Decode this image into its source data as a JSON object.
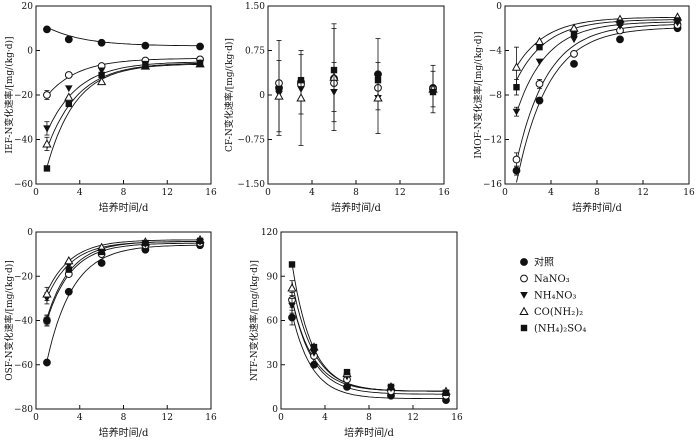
{
  "legend": {
    "items": [
      {
        "key": "ck",
        "label": "对照",
        "marker": "filled-circle"
      },
      {
        "key": "nano3",
        "label": "NaNO₃",
        "marker": "open-circle"
      },
      {
        "key": "nh4no3",
        "label": "NH₄NO₃",
        "marker": "filled-triangle-down"
      },
      {
        "key": "urea",
        "label": "CO(NH₂)₂",
        "marker": "open-triangle-up"
      },
      {
        "key": "nh4so4",
        "label": "(NH₄)₂SO₄",
        "marker": "filled-square"
      }
    ]
  },
  "chart_data": [
    {
      "id": "ief",
      "type": "scatter",
      "ylabel": "IEF-N变化速率/[mg/(kg·d)]",
      "xlabel": "培养时间/d",
      "xlim": [
        0,
        16
      ],
      "ylim": [
        -60,
        20
      ],
      "xticks": [
        0,
        4,
        8,
        12,
        16
      ],
      "xtick_labels": [
        "0",
        "4",
        "8",
        "12",
        "16"
      ],
      "yticks": [
        -60,
        -40,
        -20,
        0,
        20
      ],
      "ytick_labels": [
        "−60",
        "−40",
        "−20",
        "0",
        "20"
      ],
      "x": [
        1,
        3,
        6,
        10,
        15
      ],
      "series": [
        {
          "key": "ck",
          "values": [
            9.5,
            5,
            3.5,
            2.2,
            1.8
          ],
          "err": [
            0,
            0,
            0,
            0,
            0
          ],
          "fit": {
            "a": 2.0,
            "b": 11.5,
            "k": 0.3
          }
        },
        {
          "key": "nano3",
          "values": [
            -20,
            -11,
            -7,
            -4.5,
            -4
          ],
          "err": [
            2,
            0,
            0,
            0,
            0
          ],
          "fit": {
            "a": -3.5,
            "b": -24,
            "k": 0.35
          }
        },
        {
          "key": "nh4no3",
          "values": [
            -35,
            -17,
            -9,
            -6,
            -5.5
          ],
          "err": [
            3,
            0,
            0,
            0,
            0
          ],
          "fit": {
            "a": -5,
            "b": -45,
            "k": 0.35
          }
        },
        {
          "key": "urea",
          "values": [
            -42,
            -21,
            -14,
            -7,
            -6
          ],
          "err": [
            3,
            0,
            0,
            0,
            0
          ],
          "fit": {
            "a": -5.5,
            "b": -55,
            "k": 0.35
          }
        },
        {
          "key": "nh4so4",
          "values": [
            -53,
            -24,
            -11,
            -7,
            -6
          ],
          "err": [
            0,
            0,
            0,
            0,
            0
          ],
          "fit": {
            "a": -6,
            "b": -68,
            "k": 0.38
          }
        }
      ]
    },
    {
      "id": "cf",
      "type": "scatter",
      "ylabel": "CF-N变化速率/[mg/(kg·d)]",
      "xlabel": "培养时间/d",
      "xlim": [
        0,
        16
      ],
      "ylim": [
        -1.5,
        1.5
      ],
      "xticks": [
        0,
        4,
        8,
        12,
        16
      ],
      "xtick_labels": [
        "0",
        "4",
        "8",
        "12",
        "16"
      ],
      "yticks": [
        -1.5,
        -0.75,
        0,
        0.75,
        1.5
      ],
      "ytick_labels": [
        "−1.50",
        "−0.75",
        "0",
        "0.75",
        "1.50"
      ],
      "x": [
        1,
        3,
        6,
        10,
        15
      ],
      "series": [
        {
          "key": "ck",
          "values": [
            0.12,
            0.22,
            0.28,
            0.35,
            0.12
          ],
          "err": [
            0.8,
            0,
            0,
            0.6,
            0
          ]
        },
        {
          "key": "nano3",
          "values": [
            0.2,
            0.18,
            0.2,
            0.12,
            0.1
          ],
          "err": [
            0,
            0.5,
            0,
            0,
            0.3
          ]
        },
        {
          "key": "nh4no3",
          "values": [
            0.02,
            0.1,
            0.05,
            -0.05,
            0.05
          ],
          "err": [
            0,
            0,
            0.5,
            0.6,
            0
          ]
        },
        {
          "key": "urea",
          "values": [
            -0.02,
            -0.05,
            0.3,
            -0.05,
            0.1
          ],
          "err": [
            0.6,
            0.8,
            0.9,
            0,
            0.4
          ]
        },
        {
          "key": "nh4so4",
          "values": [
            0.1,
            0.25,
            0.42,
            0.25,
            0.05
          ],
          "err": [
            0,
            0,
            0.7,
            0,
            0
          ]
        }
      ]
    },
    {
      "id": "imof",
      "type": "scatter",
      "ylabel": "IMOF-N变化速率/[mg/(kg·d)]",
      "xlabel": "培养时间/d",
      "xlim": [
        0,
        16
      ],
      "ylim": [
        -16,
        0
      ],
      "xticks": [
        0,
        4,
        8,
        12,
        16
      ],
      "xtick_labels": [
        "0",
        "4",
        "8",
        "12",
        "16"
      ],
      "yticks": [
        -16,
        -12,
        -8,
        -4,
        0
      ],
      "ytick_labels": [
        "−16",
        "−12",
        "−8",
        "−4",
        "0"
      ],
      "x": [
        1,
        3,
        6,
        10,
        15
      ],
      "series": [
        {
          "key": "ck",
          "values": [
            -14.8,
            -8.5,
            -5.2,
            -3,
            -2
          ],
          "err": [
            0.4,
            0,
            0,
            0,
            0
          ],
          "fit": {
            "a": -1.9,
            "b": -20,
            "k": 0.36
          }
        },
        {
          "key": "nano3",
          "values": [
            -13.8,
            -7,
            -4.3,
            -2.2,
            -1.7
          ],
          "err": [
            0.6,
            0.4,
            0,
            0,
            0
          ],
          "fit": {
            "a": -1.6,
            "b": -18,
            "k": 0.37
          }
        },
        {
          "key": "nh4no3",
          "values": [
            -9.5,
            -5,
            -3,
            -1.8,
            -1.5
          ],
          "err": [
            0.4,
            0,
            0,
            0,
            0
          ],
          "fit": {
            "a": -1.4,
            "b": -12,
            "k": 0.38
          }
        },
        {
          "key": "urea",
          "values": [
            -5.5,
            -3.2,
            -2,
            -1.2,
            -1
          ],
          "err": [
            1.8,
            0,
            0,
            0,
            0
          ],
          "fit": {
            "a": -1.0,
            "b": -6.5,
            "k": 0.38
          }
        },
        {
          "key": "nh4so4",
          "values": [
            -7.3,
            -3.7,
            -2.5,
            -1.5,
            -1.3
          ],
          "err": [
            0.7,
            0,
            0,
            0,
            0
          ],
          "fit": {
            "a": -1.2,
            "b": -8,
            "k": 0.38
          }
        }
      ]
    },
    {
      "id": "osf",
      "type": "scatter",
      "ylabel": "OSF-N变化速率/[mg/(kg·d)]",
      "xlabel": "培养时间/d",
      "xlim": [
        0,
        16
      ],
      "ylim": [
        -80,
        0
      ],
      "xticks": [
        0,
        4,
        8,
        12,
        16
      ],
      "xtick_labels": [
        "0",
        "4",
        "8",
        "12",
        "16"
      ],
      "yticks": [
        -80,
        -60,
        -40,
        -20,
        0
      ],
      "ytick_labels": [
        "−80",
        "−60",
        "−40",
        "−20",
        "0"
      ],
      "x": [
        1,
        3,
        6,
        10,
        15
      ],
      "series": [
        {
          "key": "ck",
          "values": [
            -59,
            -27,
            -14,
            -8,
            -6
          ],
          "err": [
            0,
            0,
            0,
            0,
            0
          ],
          "fit": {
            "a": -5.8,
            "b": -80,
            "k": 0.42
          }
        },
        {
          "key": "nano3",
          "values": [
            -40,
            -19,
            -10,
            -6,
            -5
          ],
          "err": [
            2.5,
            0,
            0,
            0,
            0
          ],
          "fit": {
            "a": -5,
            "b": -55,
            "k": 0.45
          }
        },
        {
          "key": "nh4no3",
          "values": [
            -30,
            -15,
            -8.5,
            -5.5,
            -4.5
          ],
          "err": [
            2.5,
            0,
            0,
            0,
            0
          ],
          "fit": {
            "a": -4.3,
            "b": -40,
            "k": 0.45
          }
        },
        {
          "key": "urea",
          "values": [
            -28,
            -13,
            -7,
            -4.5,
            -3.5
          ],
          "err": [
            3,
            0,
            0,
            0,
            0
          ],
          "fit": {
            "a": -3.5,
            "b": -37,
            "k": 0.45
          }
        },
        {
          "key": "nh4so4",
          "values": [
            -40,
            -17,
            -9,
            -5,
            -4
          ],
          "err": [
            2,
            0,
            0,
            0,
            0
          ],
          "fit": {
            "a": -4.2,
            "b": -55,
            "k": 0.46
          }
        }
      ]
    },
    {
      "id": "ntf",
      "type": "scatter",
      "ylabel": "NTF-N变化速率/[mg/(kg·d)]",
      "xlabel": "培养时间/d",
      "xlim": [
        0,
        16
      ],
      "ylim": [
        0,
        120
      ],
      "xticks": [
        0,
        4,
        8,
        12,
        16
      ],
      "xtick_labels": [
        "0",
        "4",
        "8",
        "12",
        "16"
      ],
      "yticks": [
        0,
        30,
        60,
        90,
        120
      ],
      "ytick_labels": [
        "0",
        "30",
        "60",
        "90",
        "120"
      ],
      "x": [
        1,
        3,
        6,
        10,
        15
      ],
      "series": [
        {
          "key": "ck",
          "values": [
            62,
            30,
            15,
            9,
            6
          ],
          "err": [
            5,
            0,
            0,
            0,
            0
          ],
          "fit": {
            "a": 7,
            "b": 100,
            "k": 0.55
          }
        },
        {
          "key": "nano3",
          "values": [
            74,
            36,
            20,
            12,
            9
          ],
          "err": [
            5,
            0,
            0,
            0,
            0
          ],
          "fit": {
            "a": 10,
            "b": 110,
            "k": 0.53
          }
        },
        {
          "key": "nh4no3",
          "values": [
            70,
            38,
            22,
            14,
            11
          ],
          "err": [
            5,
            0,
            0,
            0,
            0
          ],
          "fit": {
            "a": 12,
            "b": 105,
            "k": 0.52
          }
        },
        {
          "key": "urea",
          "values": [
            82,
            42,
            24,
            15,
            12
          ],
          "err": [
            5,
            0,
            0,
            0,
            0
          ],
          "fit": {
            "a": 12,
            "b": 125,
            "k": 0.52
          }
        },
        {
          "key": "nh4so4",
          "values": [
            98,
            42,
            25,
            15,
            11
          ],
          "err": [
            0,
            0,
            0,
            0,
            0
          ],
          "fit": {
            "a": 12,
            "b": 150,
            "k": 0.55
          }
        }
      ]
    }
  ]
}
